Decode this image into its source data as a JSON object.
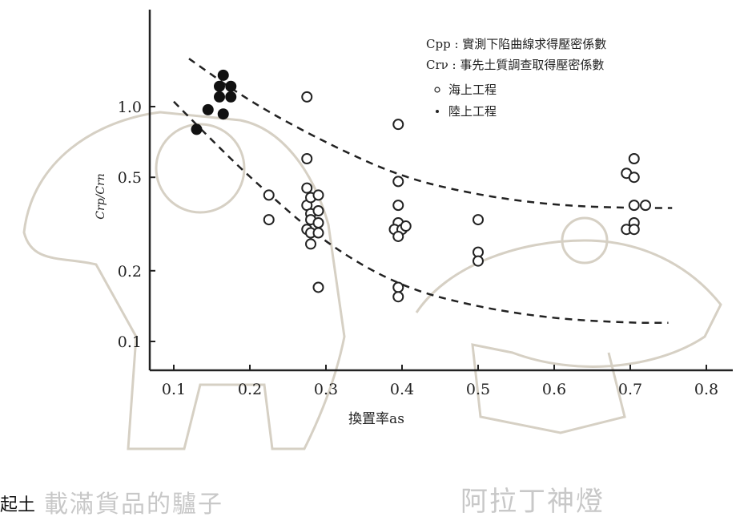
{
  "page_fragment": "起土",
  "watermark": {
    "donkey_caption": "載滿貨品的驢子",
    "lamp_caption": "阿拉丁神燈"
  },
  "colors": {
    "ink": "#222222",
    "watermark": "#c8c8c8"
  },
  "chart_data": {
    "type": "scatter",
    "xlabel": "換置率as",
    "ylabel": "Crp/Crn",
    "x_ticks": [
      "0.1",
      "0.2",
      "0.3",
      "0.4",
      "0.5",
      "0.6",
      "0.7",
      "0.8"
    ],
    "y_ticks": [
      "0.1",
      "0.2",
      "0.5",
      "1.0"
    ],
    "y_tick_values": [
      0.1,
      0.2,
      0.5,
      1.0
    ],
    "y_scale": "log",
    "xlim": [
      0.07,
      0.82
    ],
    "ylim": [
      0.062,
      2.3
    ],
    "legend": {
      "placement": "top-right",
      "definitions": [
        "Cрp : 實測下陷曲線求得壓密係數",
        "Crν : 事先土質調查取得壓密係數"
      ],
      "markers": [
        {
          "symbol": "open",
          "label": "海上工程"
        },
        {
          "symbol": "filled",
          "label": "陸上工程"
        }
      ]
    },
    "series": [
      {
        "name": "海上工程",
        "marker": "open",
        "points": [
          [
            0.225,
            0.42
          ],
          [
            0.225,
            0.33
          ],
          [
            0.275,
            1.1
          ],
          [
            0.275,
            0.6
          ],
          [
            0.275,
            0.45
          ],
          [
            0.275,
            0.38
          ],
          [
            0.275,
            0.3
          ],
          [
            0.28,
            0.41
          ],
          [
            0.28,
            0.35
          ],
          [
            0.28,
            0.33
          ],
          [
            0.28,
            0.29
          ],
          [
            0.28,
            0.26
          ],
          [
            0.29,
            0.42
          ],
          [
            0.29,
            0.36
          ],
          [
            0.29,
            0.32
          ],
          [
            0.29,
            0.29
          ],
          [
            0.29,
            0.17
          ],
          [
            0.395,
            0.84
          ],
          [
            0.395,
            0.48
          ],
          [
            0.395,
            0.38
          ],
          [
            0.395,
            0.32
          ],
          [
            0.39,
            0.3
          ],
          [
            0.4,
            0.3
          ],
          [
            0.395,
            0.28
          ],
          [
            0.405,
            0.31
          ],
          [
            0.395,
            0.17
          ],
          [
            0.395,
            0.155
          ],
          [
            0.5,
            0.33
          ],
          [
            0.5,
            0.24
          ],
          [
            0.5,
            0.22
          ],
          [
            0.695,
            0.52
          ],
          [
            0.695,
            0.3
          ],
          [
            0.705,
            0.6
          ],
          [
            0.705,
            0.5
          ],
          [
            0.705,
            0.38
          ],
          [
            0.705,
            0.32
          ],
          [
            0.705,
            0.3
          ],
          [
            0.72,
            0.38
          ]
        ]
      },
      {
        "name": "陸上工程",
        "marker": "filled",
        "points": [
          [
            0.13,
            0.8
          ],
          [
            0.145,
            0.97
          ],
          [
            0.165,
            1.36
          ],
          [
            0.16,
            1.22
          ],
          [
            0.16,
            1.1
          ],
          [
            0.175,
            1.22
          ],
          [
            0.175,
            1.1
          ],
          [
            0.165,
            0.93
          ]
        ]
      }
    ],
    "curves": [
      {
        "style": "dashed",
        "points": [
          [
            0.12,
            1.6
          ],
          [
            0.2,
            1.05
          ],
          [
            0.3,
            0.7
          ],
          [
            0.4,
            0.5
          ],
          [
            0.5,
            0.42
          ],
          [
            0.6,
            0.38
          ],
          [
            0.7,
            0.37
          ],
          [
            0.755,
            0.37
          ]
        ]
      },
      {
        "style": "dashed",
        "points": [
          [
            0.1,
            1.05
          ],
          [
            0.15,
            0.72
          ],
          [
            0.2,
            0.5
          ],
          [
            0.3,
            0.26
          ],
          [
            0.4,
            0.17
          ],
          [
            0.5,
            0.14
          ],
          [
            0.6,
            0.125
          ],
          [
            0.7,
            0.12
          ],
          [
            0.75,
            0.12
          ]
        ]
      }
    ]
  }
}
